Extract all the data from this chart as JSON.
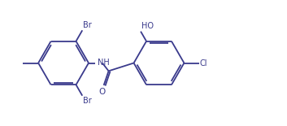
{
  "background": "#ffffff",
  "line_color": "#3a3a8c",
  "line_width": 1.3,
  "text_color": "#3a3a8c",
  "font_size": 7.0,
  "figsize": [
    3.53,
    1.55
  ],
  "dpi": 100,
  "xlim": [
    0.0,
    10.0
  ],
  "ylim": [
    0.0,
    4.3
  ]
}
